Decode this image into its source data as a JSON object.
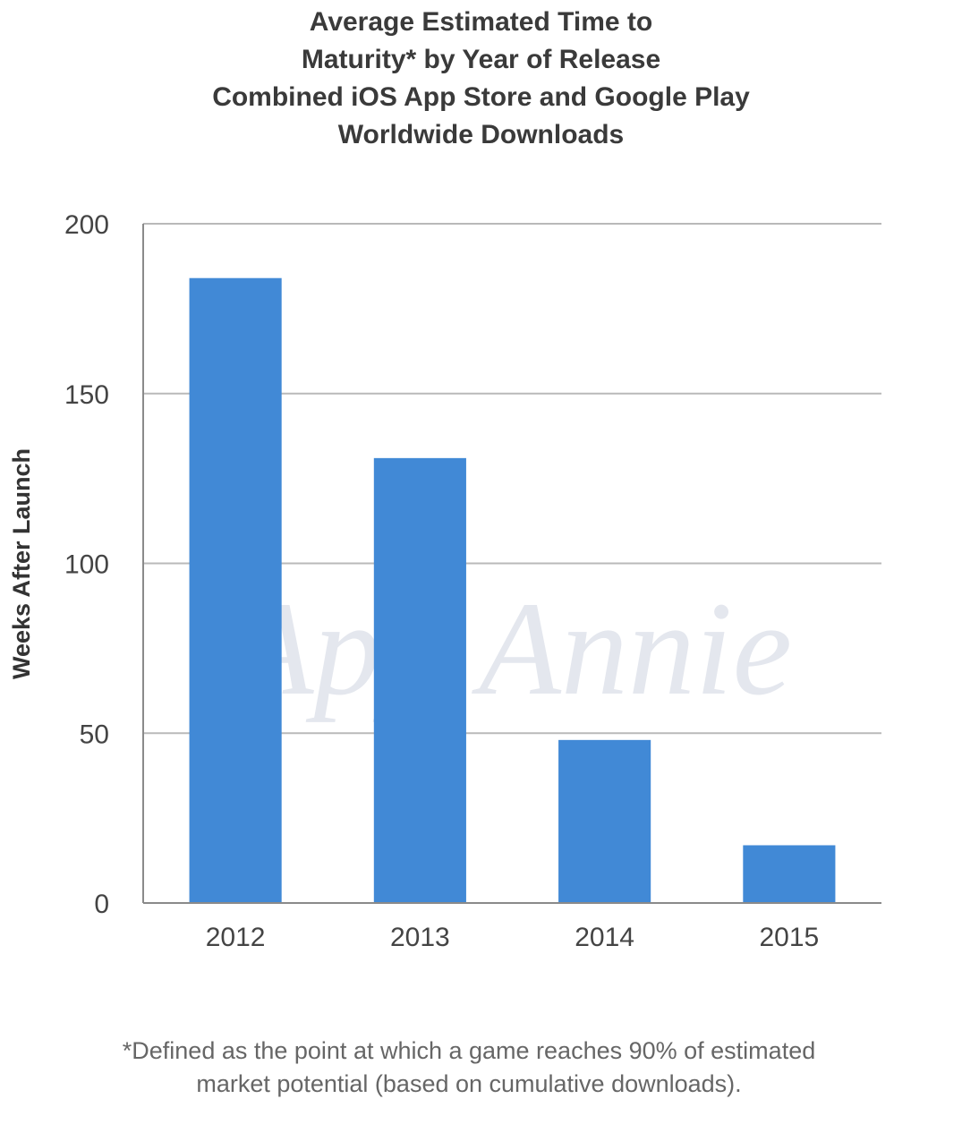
{
  "chart_data": {
    "type": "bar",
    "title_lines": [
      "Average Estimated Time to",
      "Maturity* by Year of Release",
      "Combined iOS App Store and Google Play",
      "Worldwide Downloads"
    ],
    "categories": [
      "2012",
      "2013",
      "2014",
      "2015"
    ],
    "values": [
      184,
      131,
      48,
      17
    ],
    "xlabel": "",
    "ylabel": "Weeks After Launch",
    "ylim": [
      0,
      200
    ],
    "yticks": [
      0,
      50,
      100,
      150,
      200
    ],
    "grid": true,
    "bar_color": "#4189d6",
    "grid_color": "#b9b9b9"
  },
  "watermark": "App Annie",
  "footnote_lines": [
    "*Defined as the point at which a game reaches 90% of estimated",
    "market potential (based on cumulative downloads)."
  ]
}
